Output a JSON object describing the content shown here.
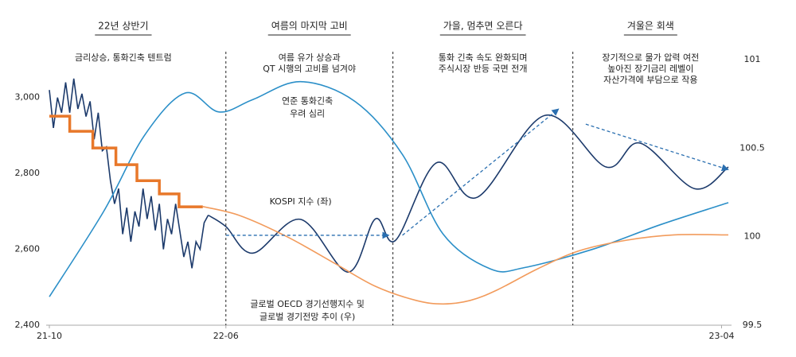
{
  "chart_data": {
    "type": "line",
    "xlim": [
      0,
      100
    ],
    "xticks": [
      {
        "value": 0,
        "label": "21-10"
      },
      {
        "value": 26,
        "label": "22-06"
      },
      {
        "value": 99,
        "label": "23-04"
      }
    ],
    "ylim": [
      2400,
      3100
    ],
    "yticks": [
      {
        "value": 2400,
        "label": "2,400"
      },
      {
        "value": 2600,
        "label": "2,600"
      },
      {
        "value": 2800,
        "label": "2,800"
      },
      {
        "value": 3000,
        "label": "3,000"
      }
    ],
    "y2lim": [
      99.5,
      101
    ],
    "y2ticks": [
      99.5,
      100,
      100.5,
      101
    ],
    "dividers": [
      26,
      50.6,
      77.1
    ],
    "phases": [
      {
        "title": "22년 상반기",
        "lines": [
          "금리상승, 통화긴축 텐트럼"
        ]
      },
      {
        "title": "여름의 마지막 고비",
        "lines": [
          "여름 유가 상승과",
          "QT 시행의 고비를 넘겨야"
        ]
      },
      {
        "title": "가을, 멈추면 오른다",
        "lines": [
          "통화 긴축 속도 완화되며",
          "주식시장 반등 국면 전개"
        ]
      },
      {
        "title": "겨울은 회색",
        "lines": [
          "장기적으로 물가 압력 여전",
          "높아진 장기금리 레벨이",
          "자산가격에 부담으로 작용"
        ]
      }
    ],
    "series": [
      {
        "style": "jagged",
        "color": "#1c3a6b",
        "axis": "y",
        "x": [
          0,
          0.6,
          1.2,
          1.8,
          2.4,
          3,
          3.6,
          4.2,
          4.8,
          5.4,
          6,
          6.6,
          7.2,
          7.8,
          8.4,
          9,
          9.6,
          10.2,
          10.8,
          11.4,
          12,
          12.6,
          13.2,
          13.8,
          14.4,
          15,
          15.6,
          16.2,
          16.8,
          17.4,
          18,
          18.6,
          19.2,
          19.8,
          20.4,
          21,
          21.6,
          22.2,
          22.8,
          23.4
        ],
        "values": [
          3020,
          2920,
          3000,
          2960,
          3040,
          2960,
          3050,
          2970,
          3010,
          2950,
          2990,
          2890,
          2960,
          2860,
          2870,
          2780,
          2720,
          2760,
          2640,
          2710,
          2620,
          2700,
          2660,
          2760,
          2680,
          2740,
          2650,
          2720,
          2600,
          2680,
          2640,
          2720,
          2650,
          2580,
          2620,
          2550,
          2620,
          2600,
          2670,
          2690
        ]
      },
      {
        "style": "smooth",
        "color": "#1c3a6b",
        "axis": "y",
        "x": [
          23.4,
          26,
          30,
          37,
          44,
          48,
          51,
          57,
          63,
          73,
          82,
          87,
          95,
          100
        ],
        "values": [
          2690,
          2660,
          2590,
          2679,
          2540,
          2680,
          2624,
          2828,
          2737,
          2953,
          2817,
          2880,
          2760,
          2817
        ]
      },
      {
        "style": "smooth",
        "color": "#2b8fc8",
        "axis": "y",
        "x": [
          0,
          8,
          14,
          20,
          25,
          30,
          37,
          45,
          52,
          58,
          65,
          70,
          80,
          90,
          100
        ],
        "values": [
          2475,
          2700,
          2900,
          3012,
          2962,
          2995,
          3042,
          2990,
          2850,
          2640,
          2548,
          2552,
          2600,
          2665,
          2723
        ]
      },
      {
        "style": "step",
        "color": "#e8782a",
        "axis": "y",
        "x": [
          0,
          3,
          3,
          6.4,
          6.4,
          9.8,
          9.8,
          12.9,
          12.9,
          16.2,
          16.2,
          19.1,
          19.1,
          22.6
        ],
        "values": [
          2951,
          2951,
          2911,
          2911,
          2867,
          2867,
          2823,
          2823,
          2781,
          2781,
          2746,
          2746,
          2712,
          2712
        ]
      },
      {
        "style": "smooth",
        "color": "#f29b5c",
        "axis": "y2",
        "x": [
          22.6,
          28,
          35,
          42,
          48,
          54,
          58,
          62,
          66,
          72,
          78,
          85,
          92,
          100
        ],
        "values": [
          100.17,
          100.12,
          100.0,
          99.85,
          99.72,
          99.64,
          99.62,
          99.64,
          99.7,
          99.82,
          99.92,
          99.98,
          100.01,
          100.01
        ]
      }
    ],
    "trend_arrows": [
      {
        "x": [
          26,
          50
        ],
        "values": [
          2637,
          2637
        ]
      },
      {
        "x": [
          52,
          75
        ],
        "values": [
          2637,
          2970
        ]
      },
      {
        "x": [
          79,
          100
        ],
        "values": [
          2930,
          2810
        ]
      }
    ],
    "annotations": [
      {
        "lines": [
          "연준 통화긴축",
          "우려 심리"
        ],
        "color": "#2b8fc8",
        "x": 38,
        "value": 2990
      },
      {
        "lines": [
          "KOSPI 지수 (좌)"
        ],
        "color": "#1c3a6b",
        "x": 37,
        "value": 2725
      },
      {
        "lines": [
          "글로벌 OECD 경기선행지수 및",
          "글로벌 경기전망 추이 (우)"
        ],
        "color": "#e8782a",
        "x": 38,
        "value": 2455
      }
    ]
  }
}
